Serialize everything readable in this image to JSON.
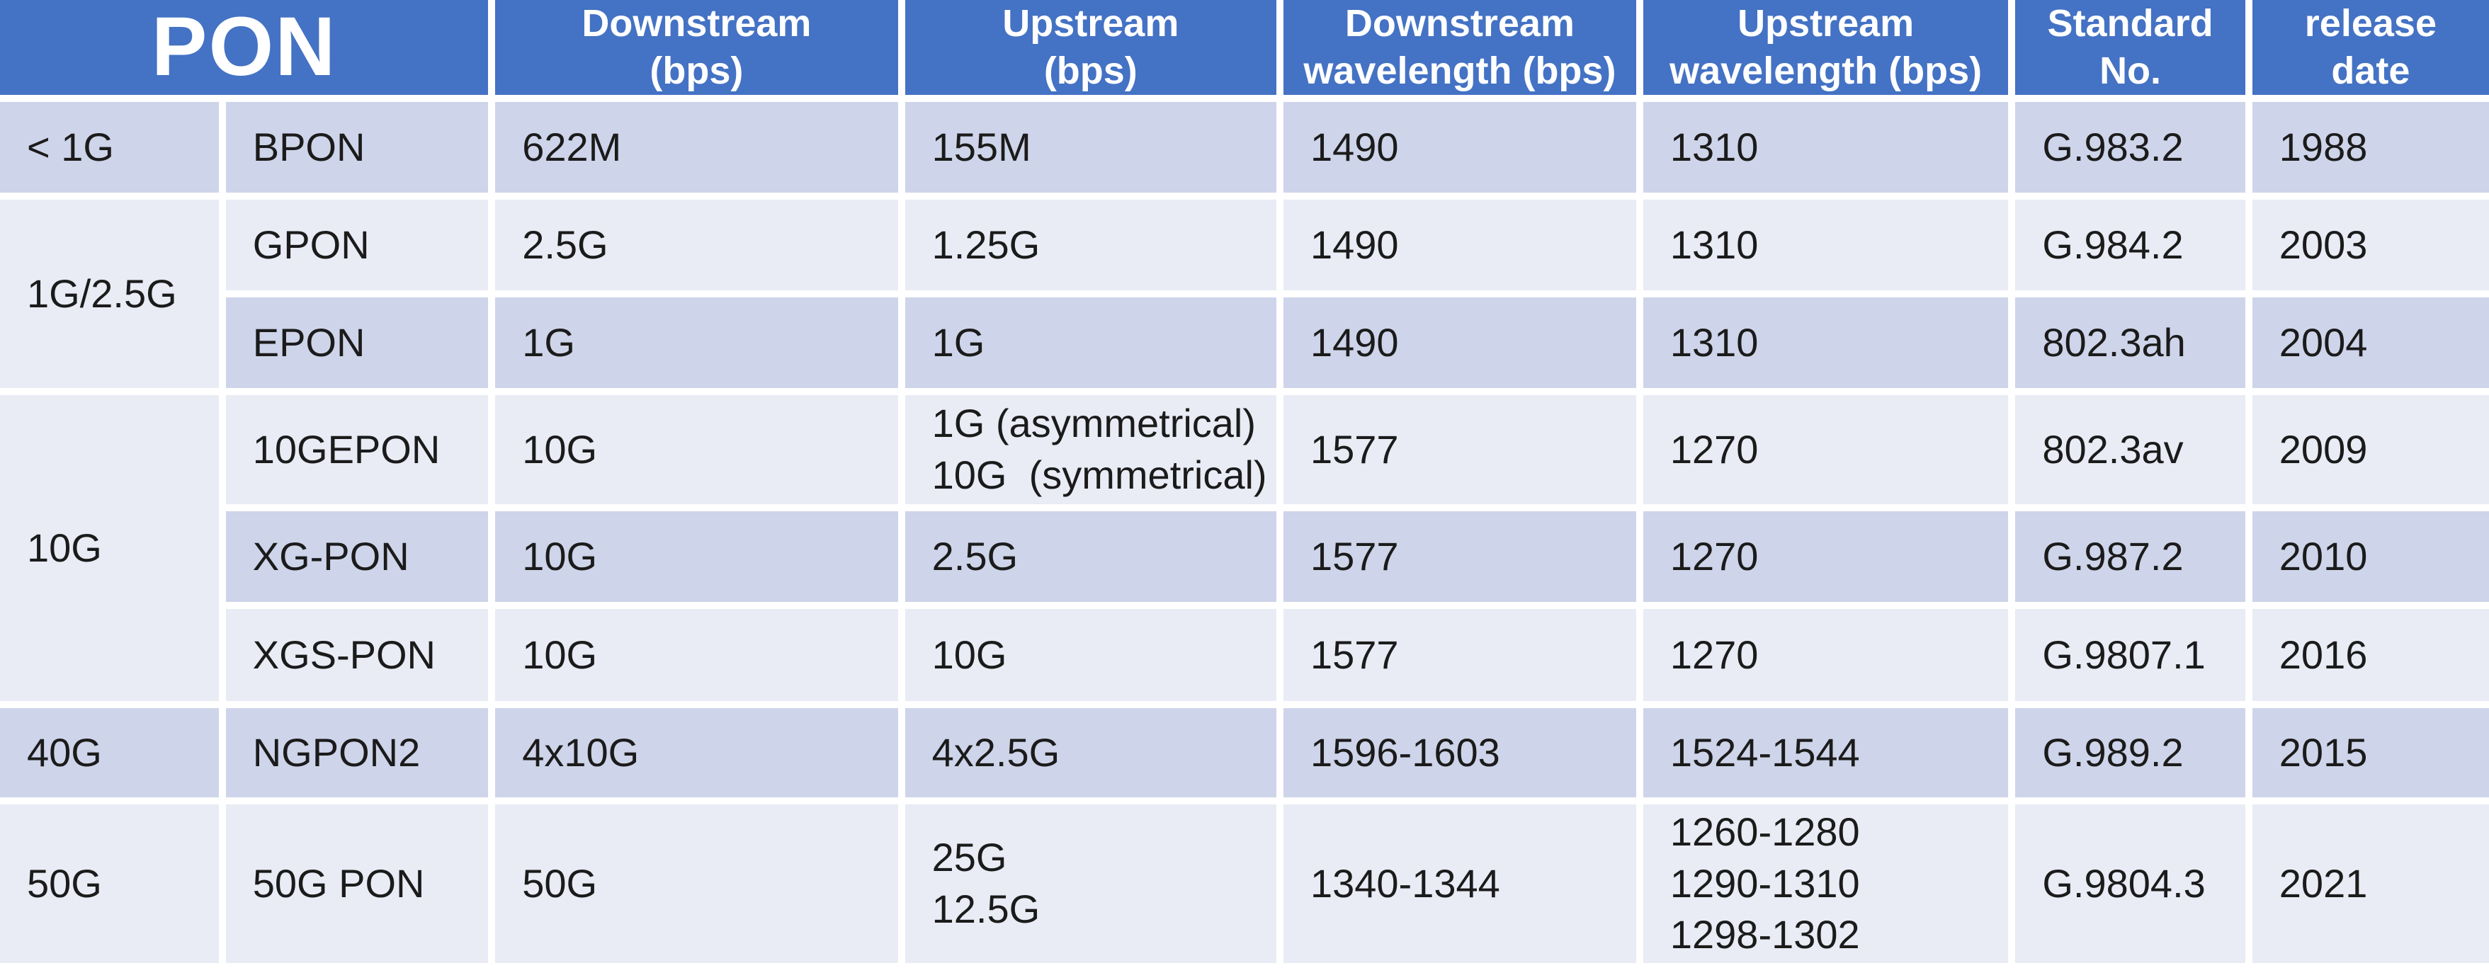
{
  "table": {
    "title": "PON",
    "columns": [
      "Downstream\n(bps)",
      "Upstream\n(bps)",
      "Downstream\nwavelength (bps)",
      "Upstream\nwavelength (bps)",
      "Standard\nNo.",
      "release\ndate"
    ],
    "generations": [
      {
        "label": "< 1G"
      },
      {
        "label": "1G/2.5G"
      },
      {
        "label": "10G"
      },
      {
        "label": "40G"
      },
      {
        "label": "50G"
      }
    ],
    "rows": [
      {
        "name": "BPON",
        "downstream": "622M",
        "upstream": "155M",
        "ds_wavelength": "1490",
        "us_wavelength": "1310",
        "standard": "G.983.2",
        "release": "1988"
      },
      {
        "name": "GPON",
        "downstream": "2.5G",
        "upstream": "1.25G",
        "ds_wavelength": "1490",
        "us_wavelength": "1310",
        "standard": "G.984.2",
        "release": "2003"
      },
      {
        "name": "EPON",
        "downstream": "1G",
        "upstream": "1G",
        "ds_wavelength": "1490",
        "us_wavelength": "1310",
        "standard": "802.3ah",
        "release": "2004"
      },
      {
        "name": "10GEPON",
        "downstream": "10G",
        "upstream": "1G (asymmetrical)\n10G  (symmetrical)",
        "ds_wavelength": "1577",
        "us_wavelength": "1270",
        "standard": "802.3av",
        "release": "2009"
      },
      {
        "name": "XG-PON",
        "downstream": "10G",
        "upstream": "2.5G",
        "ds_wavelength": "1577",
        "us_wavelength": "1270",
        "standard": "G.987.2",
        "release": "2010"
      },
      {
        "name": "XGS-PON",
        "downstream": "10G",
        "upstream": "10G",
        "ds_wavelength": "1577",
        "us_wavelength": "1270",
        "standard": "G.9807.1",
        "release": "2016"
      },
      {
        "name": "NGPON2",
        "downstream": "4x10G",
        "upstream": "4x2.5G",
        "ds_wavelength": "1596-1603",
        "us_wavelength": "1524-1544",
        "standard": "G.989.2",
        "release": "2015"
      },
      {
        "name": "50G PON",
        "downstream": "50G",
        "upstream": "25G\n12.5G",
        "ds_wavelength": "1340-1344",
        "us_wavelength": "1260-1280\n1290-1310\n1298-1302",
        "standard": "G.9804.3",
        "release": "2021"
      }
    ],
    "colors": {
      "header_bg": "#4472c4",
      "band_dark": "#ced4e9",
      "band_light": "#e9ebf5",
      "grid_line": "#ffffff",
      "header_text": "#ffffff",
      "body_text": "#1b1b1b"
    }
  }
}
